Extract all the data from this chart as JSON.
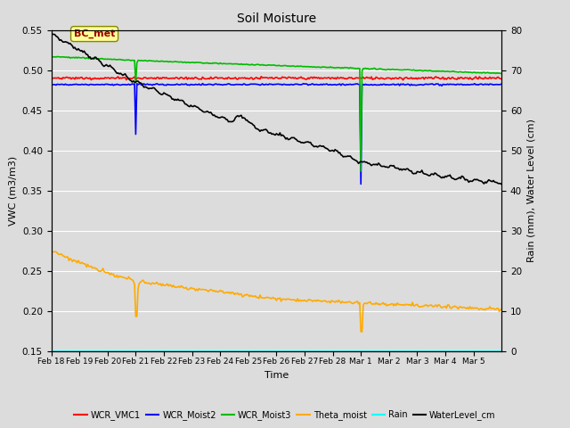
{
  "title": "Soil Moisture",
  "xlabel": "Time",
  "ylabel_left": "VWC (m3/m3)",
  "ylabel_right": "Rain (mm), Water Level (cm)",
  "ylim_left": [
    0.15,
    0.55
  ],
  "ylim_right": [
    0,
    80
  ],
  "yticks_left": [
    0.15,
    0.2,
    0.25,
    0.3,
    0.35,
    0.4,
    0.45,
    0.5,
    0.55
  ],
  "yticks_right": [
    0,
    10,
    20,
    30,
    40,
    50,
    60,
    70,
    80
  ],
  "bg_color": "#dcdcdc",
  "fig_color": "#dcdcdc",
  "annotation_label": "BC_met",
  "line_colors": {
    "WCR_VMC1": "#ff0000",
    "WCR_Moist2": "#0000ff",
    "WCR_Moist3": "#00bb00",
    "Theta_moist": "#ffaa00",
    "Rain": "#00ffff",
    "WaterLevel_cm": "#000000"
  },
  "line_widths": {
    "WCR_VMC1": 1.2,
    "WCR_Moist2": 1.2,
    "WCR_Moist3": 1.2,
    "Theta_moist": 1.2,
    "Rain": 1.2,
    "WaterLevel_cm": 1.2
  },
  "xtick_labels": [
    "Feb 18",
    "Feb 19",
    "Feb 20",
    "Feb 21",
    "Feb 22",
    "Feb 23",
    "Feb 24",
    "Feb 25",
    "Feb 26",
    "Feb 27",
    "Feb 28",
    "Mar 1",
    "Mar 2",
    "Mar 3",
    "Mar 4",
    "Mar 5"
  ],
  "n_days": 16,
  "spike1_day": 3,
  "spike2_day": 11
}
